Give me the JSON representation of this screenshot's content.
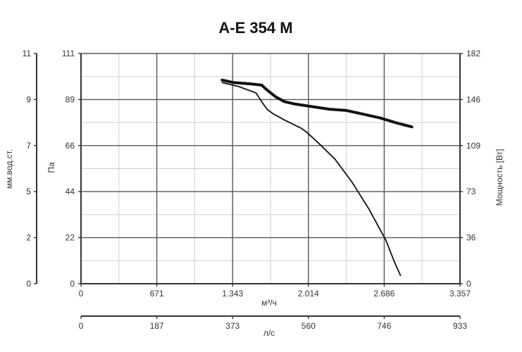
{
  "chart_data": {
    "type": "line",
    "title": "A-E 354 M",
    "x_axis": {
      "label": "м³/ч",
      "ticks": [
        "0",
        "671",
        "1.343",
        "2.014",
        "2.686",
        "3.357"
      ],
      "range": [
        0,
        3357
      ]
    },
    "x2_axis": {
      "label": "л/с",
      "ticks": [
        "0",
        "187",
        "373",
        "560",
        "746",
        "933"
      ],
      "range": [
        0,
        933
      ]
    },
    "y_left_outer": {
      "label": "мм.вод.ст.",
      "ticks": [
        "0",
        "2",
        "5",
        "7",
        "9",
        "11"
      ]
    },
    "y_left": {
      "label": "Па",
      "ticks": [
        "0",
        "22",
        "44",
        "66",
        "89",
        "111"
      ],
      "range": [
        0,
        111
      ]
    },
    "y_right": {
      "label": "Мощность [Вт]",
      "ticks": [
        "0",
        "36",
        "73",
        "109",
        "146",
        "182"
      ],
      "range": [
        0,
        182
      ]
    },
    "grid": true,
    "series": [
      {
        "role": "pressure",
        "axis": "y_left",
        "x": [
          1250,
          1400,
          1550,
          1610,
          1650,
          1700,
          1800,
          1950,
          2000,
          2100,
          2250,
          2400,
          2550,
          2700,
          2780,
          2830
        ],
        "y": [
          97,
          95,
          92,
          87,
          84,
          82,
          79,
          75,
          73,
          68,
          60,
          49,
          36,
          21,
          10,
          4
        ]
      },
      {
        "role": "power",
        "axis": "y_right",
        "x": [
          1250,
          1350,
          1500,
          1600,
          1650,
          1720,
          1800,
          1900,
          2050,
          2200,
          2350,
          2500,
          2650,
          2800,
          2930
        ],
        "y": [
          161,
          159,
          158,
          157,
          153,
          148,
          144,
          142,
          140,
          138,
          137,
          134,
          131,
          127,
          124
        ]
      }
    ]
  }
}
